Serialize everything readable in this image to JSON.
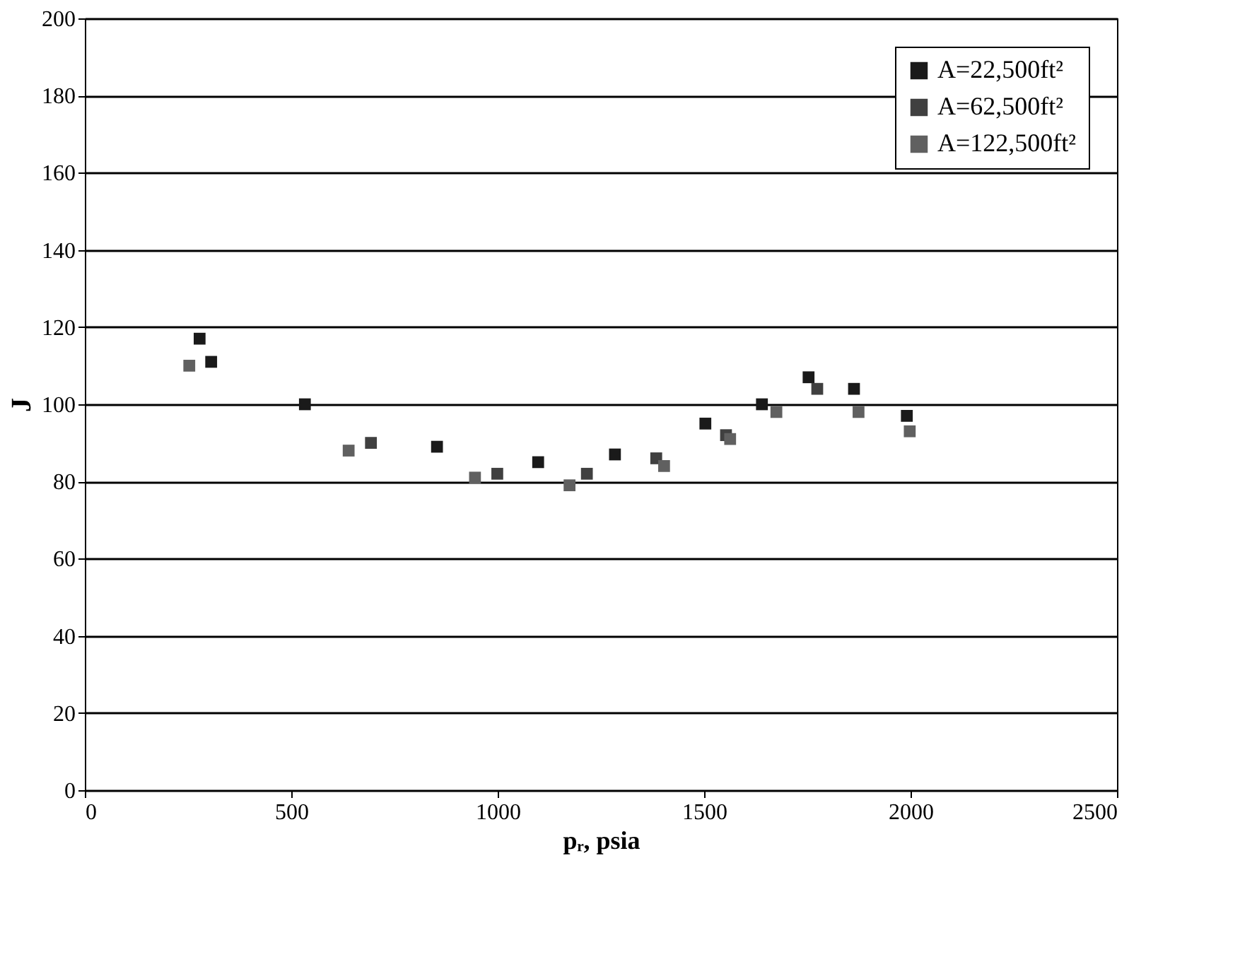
{
  "chart_data": {
    "type": "scatter",
    "xlabel": "pᵣ, psia",
    "ylabel": "J",
    "marker": "square",
    "grid": "y",
    "legend": "top right",
    "xlim": [
      0,
      2500
    ],
    "xticks": [
      0,
      500,
      1000,
      1500,
      2000,
      2500
    ],
    "ylim": [
      0,
      200
    ],
    "yticks": [
      0,
      20,
      40,
      60,
      80,
      100,
      120,
      140,
      160,
      180,
      200
    ],
    "series": [
      {
        "name": "A=22,500ft²",
        "color": "#1a1a1a",
        "x": [
          278,
          306,
          533,
          853,
          1098,
          1284,
          1503,
          1640,
          1753,
          1863,
          1991
        ],
        "values": [
          117,
          111,
          100,
          89,
          85,
          87,
          95,
          100,
          107,
          104,
          97
        ]
      },
      {
        "name": "A=62,500ft²",
        "color": "#404040",
        "x": [
          693,
          999,
          1216,
          1384,
          1553,
          1774
        ],
        "values": [
          90,
          82,
          82,
          86,
          92,
          104
        ]
      },
      {
        "name": "A=122,500ft²",
        "color": "#606060",
        "x": [
          253,
          639,
          945,
          1174,
          1403,
          1563,
          1675,
          1874,
          1998
        ],
        "values": [
          110,
          88,
          81,
          79,
          84,
          91,
          98,
          98,
          93
        ]
      }
    ]
  }
}
